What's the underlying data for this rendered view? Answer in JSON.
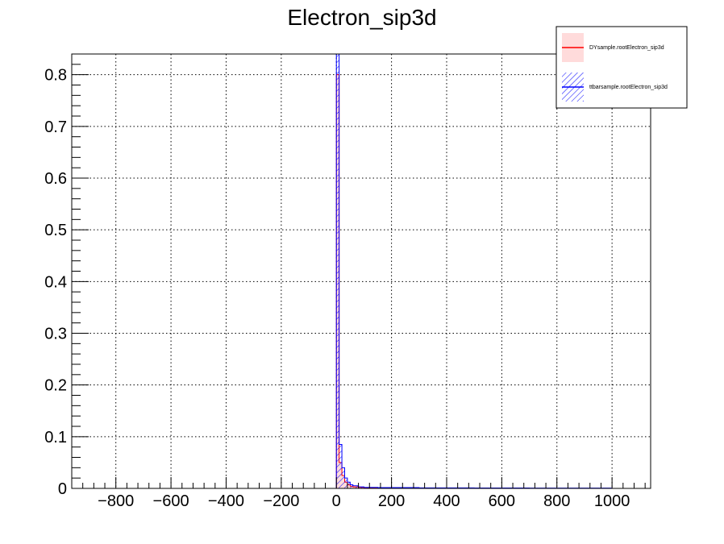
{
  "chart_data": {
    "type": "histogram",
    "title": "Electron_sip3d",
    "xlabel": "",
    "ylabel": "",
    "xlim": [
      -960,
      1140
    ],
    "ylim": [
      0,
      0.84
    ],
    "grid": true,
    "x_ticks": [
      -800,
      -600,
      -400,
      -200,
      0,
      200,
      400,
      600,
      800,
      1000
    ],
    "y_ticks": [
      0,
      0.1,
      0.2,
      0.3,
      0.4,
      0.5,
      0.6,
      0.7,
      0.8
    ],
    "x_tick_labels": [
      "−800",
      "−600",
      "−400",
      "−200",
      "0",
      "200",
      "400",
      "600",
      "800",
      "1000"
    ],
    "y_tick_labels": [
      "0",
      "0.1",
      "0.2",
      "0.3",
      "0.4",
      "0.5",
      "0.6",
      "0.7",
      "0.8"
    ],
    "legend_position": "top-right",
    "series": [
      {
        "name": "DYsample.rootElectron_sip3d",
        "line_color": "#ff0000",
        "fill_color": "#ffcccc",
        "fill_style": "solid",
        "bins": [
          [
            0,
            10,
            0.8
          ],
          [
            10,
            20,
            0.05
          ],
          [
            20,
            30,
            0.025
          ],
          [
            30,
            40,
            0.012
          ],
          [
            40,
            50,
            0.007
          ],
          [
            50,
            60,
            0.004
          ],
          [
            60,
            80,
            0.003
          ],
          [
            80,
            100,
            0.002
          ],
          [
            100,
            150,
            0.0015
          ],
          [
            150,
            300,
            0.001
          ],
          [
            300,
            500,
            0.0006
          ],
          [
            500,
            700,
            0.0004
          ]
        ]
      },
      {
        "name": "ttbarsample.rootElectron_sip3d",
        "line_color": "#0000ff",
        "fill_color": "#0000ff",
        "fill_style": "hatched",
        "bins": [
          [
            0,
            10,
            0.84
          ],
          [
            10,
            20,
            0.085
          ],
          [
            20,
            30,
            0.04
          ],
          [
            30,
            40,
            0.02
          ],
          [
            40,
            50,
            0.012
          ],
          [
            50,
            60,
            0.007
          ],
          [
            60,
            80,
            0.005
          ],
          [
            80,
            100,
            0.003
          ],
          [
            100,
            150,
            0.002
          ],
          [
            150,
            300,
            0.0015
          ],
          [
            300,
            500,
            0.001
          ],
          [
            500,
            700,
            0.0007
          ],
          [
            700,
            1000,
            0.0005
          ]
        ]
      }
    ]
  }
}
